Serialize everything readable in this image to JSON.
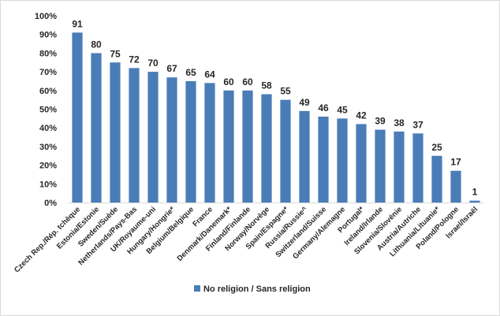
{
  "chart_data": {
    "type": "bar",
    "title": "",
    "xlabel": "",
    "ylabel": "",
    "ylim": [
      0,
      100
    ],
    "yticks": [
      "0%",
      "10%",
      "20%",
      "30%",
      "40%",
      "50%",
      "60%",
      "70%",
      "80%",
      "90%",
      "100%"
    ],
    "grid": false,
    "legend_position": "bottom",
    "categories": [
      "Czech Rep./Rép. tchèque",
      "Estonia/Estonie",
      "Sweden/Suède",
      "Netherlands/Pays-Bas",
      "UK/Royaume-uni",
      "Hungary/Hongrie*",
      "Belgium/Belgique",
      "France",
      "Denmark/Danemark*",
      "Finland/Finlande",
      "Norway/Norvège",
      "Spain/Espagne*",
      "Russia/Russie^",
      "Switzerland/Suisse",
      "Germany/Alemagne",
      "Portugal*",
      "Ireland/Irlande",
      "Slovenia/Slovénie",
      "Austria/Autriche",
      "Lithuania/Lituanie*",
      "Poland/Pologne",
      "Israel/Israël"
    ],
    "series": [
      {
        "name": "No religion / Sans religion",
        "color": "#4a7db8",
        "values": [
          91,
          80,
          75,
          72,
          70,
          67,
          65,
          64,
          60,
          60,
          58,
          55,
          49,
          46,
          45,
          42,
          39,
          38,
          37,
          25,
          17,
          1
        ]
      }
    ]
  }
}
